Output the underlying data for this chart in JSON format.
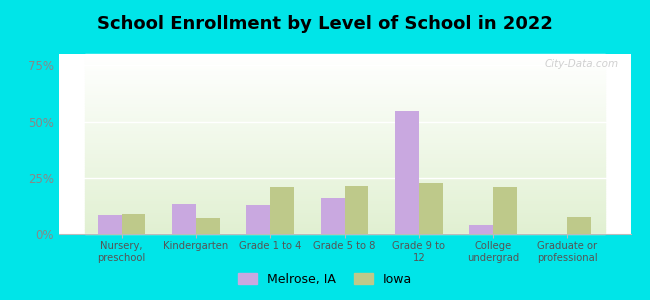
{
  "title": "School Enrollment by Level of School in 2022",
  "categories": [
    "Nursery,\npreschool",
    "Kindergarten",
    "Grade 1 to 4",
    "Grade 5 to 8",
    "Grade 9 to\n12",
    "College\nundergrad",
    "Graduate or\nprofessional"
  ],
  "melrose_values": [
    8.5,
    13.5,
    13.0,
    16.0,
    54.5,
    4.0,
    0.0
  ],
  "iowa_values": [
    9.0,
    7.0,
    21.0,
    21.5,
    22.5,
    21.0,
    7.5
  ],
  "melrose_color": "#c9a8e0",
  "iowa_color": "#bec98a",
  "background_outer": "#00e5e8",
  "title_fontsize": 13,
  "tick_color": "#888888",
  "axis_label_color": "#555555",
  "ylim": [
    0,
    80
  ],
  "yticks": [
    0,
    25,
    50,
    75
  ],
  "ytick_labels": [
    "0%",
    "25%",
    "50%",
    "75%"
  ],
  "legend_labels": [
    "Melrose, IA",
    "Iowa"
  ],
  "watermark": "City-Data.com"
}
